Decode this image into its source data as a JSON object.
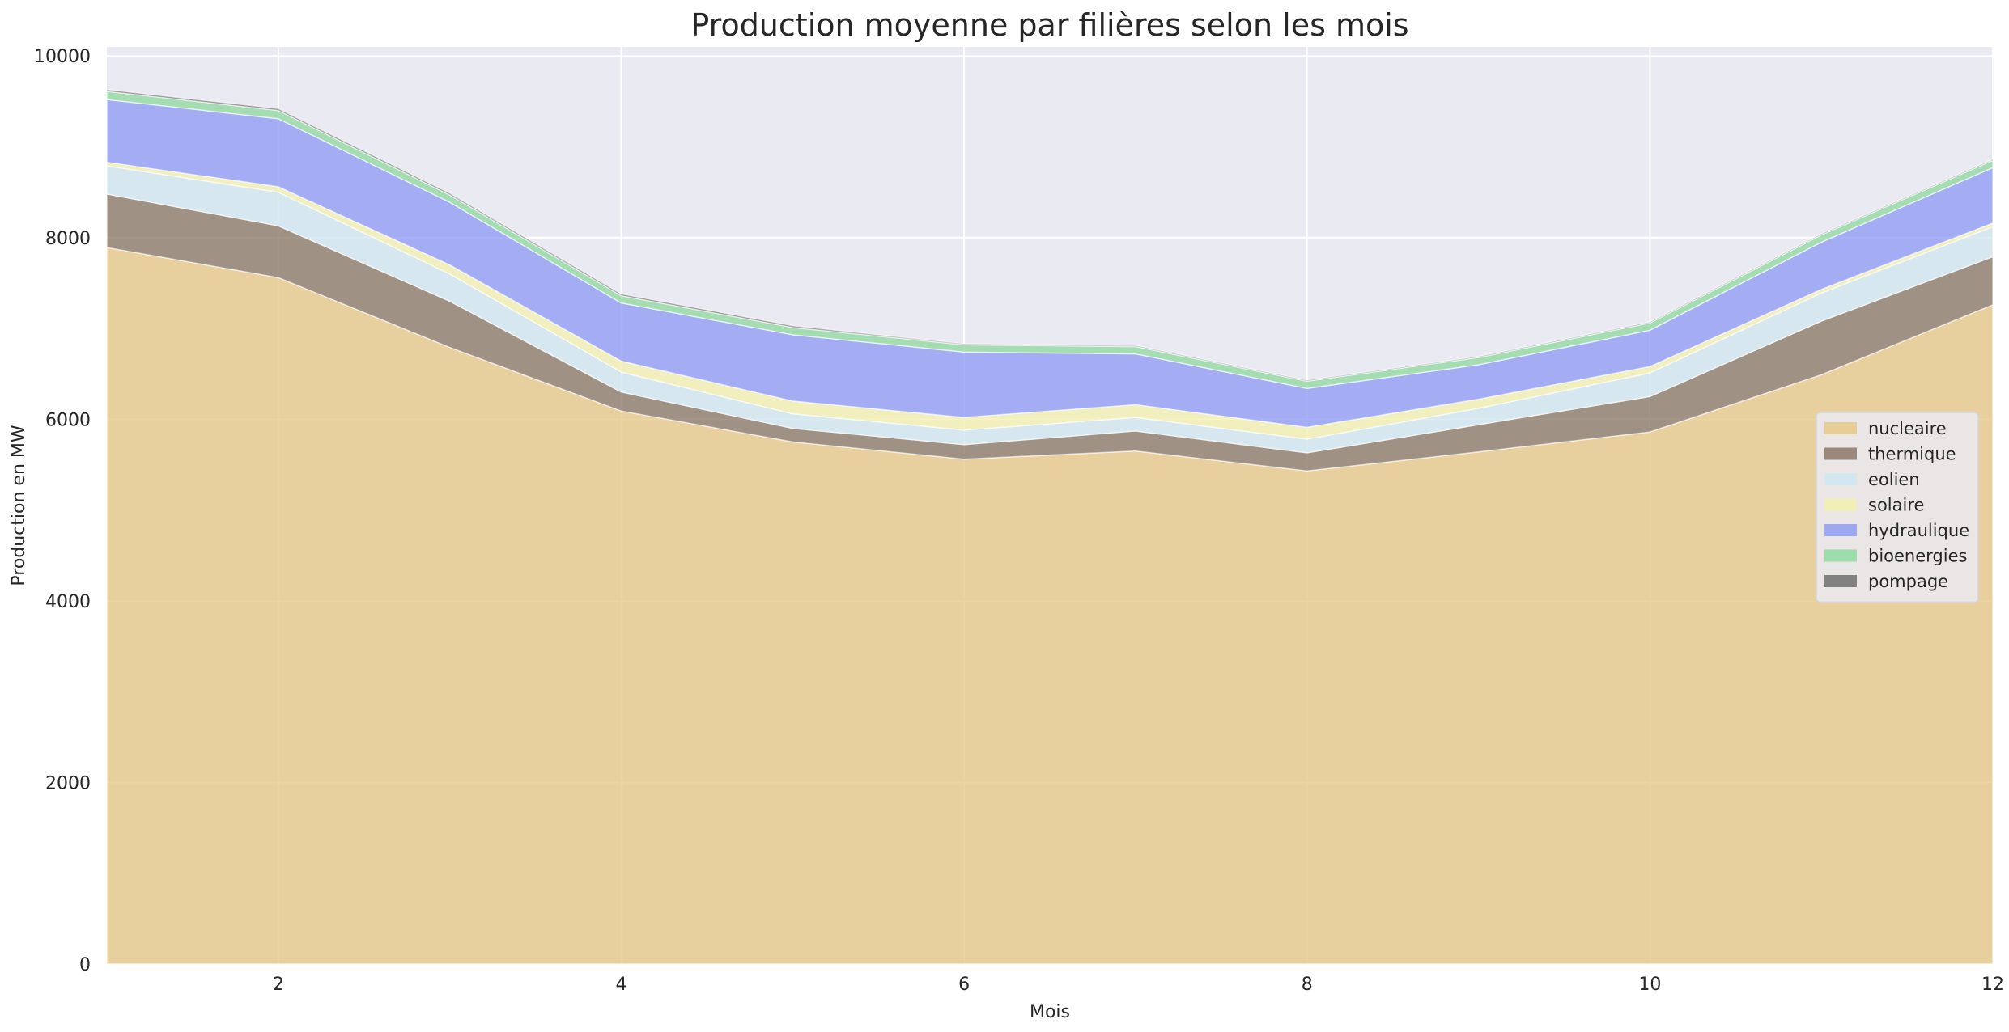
{
  "chart_data": {
    "type": "area",
    "stacked": true,
    "title": "Production moyenne par filières selon les mois",
    "xlabel": "Mois",
    "ylabel": "Production en MW",
    "x": [
      1,
      2,
      3,
      4,
      5,
      6,
      7,
      8,
      9,
      10,
      11,
      12
    ],
    "xlim": [
      1,
      12
    ],
    "ylim": [
      0,
      10100
    ],
    "xticks": [
      2,
      4,
      6,
      8,
      10,
      12
    ],
    "yticks": [
      0,
      2000,
      4000,
      6000,
      8000,
      10000
    ],
    "grid": true,
    "legend_position": "center-right",
    "series": [
      {
        "name": "nucleaire",
        "color": "#e6c887",
        "values": [
          7890,
          7560,
          6790,
          6090,
          5750,
          5560,
          5650,
          5430,
          5640,
          5860,
          6490,
          7260
        ]
      },
      {
        "name": "thermique",
        "color": "#8b7767",
        "values": [
          590,
          570,
          510,
          210,
          150,
          160,
          220,
          200,
          300,
          390,
          590,
          530
        ]
      },
      {
        "name": "eolien",
        "color": "#cfe6ee",
        "values": [
          310,
          370,
          300,
          220,
          160,
          160,
          150,
          150,
          180,
          260,
          310,
          330
        ]
      },
      {
        "name": "solaire",
        "color": "#f2efb0",
        "values": [
          40,
          60,
          100,
          120,
          140,
          140,
          140,
          130,
          100,
          70,
          40,
          40
        ]
      },
      {
        "name": "hydraulique",
        "color": "#8f9bf3",
        "values": [
          690,
          750,
          690,
          640,
          730,
          720,
          560,
          430,
          380,
          400,
          520,
          610
        ]
      },
      {
        "name": "bioenergies",
        "color": "#8fd9a0",
        "values": [
          90,
          90,
          80,
          80,
          80,
          80,
          80,
          80,
          80,
          80,
          80,
          80
        ]
      },
      {
        "name": "pompage",
        "color": "#6e6e6e",
        "values": [
          20,
          20,
          20,
          20,
          20,
          10,
          10,
          10,
          10,
          10,
          10,
          10
        ]
      }
    ]
  }
}
